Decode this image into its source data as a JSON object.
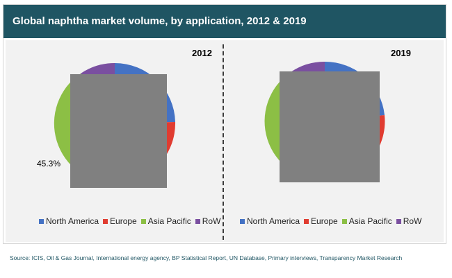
{
  "title": "Global naphtha market volume, by application, 2012 & 2019",
  "source": "Source: ICIS, Oil & Gas Journal, International energy agency, BP Statistical Report,  UN Database, Primary interviews, Transparency Market Research",
  "colors": {
    "title_bar": "#1f5563",
    "north_america": "#4472c4",
    "europe": "#e03c31",
    "asia_pacific": "#8cbf45",
    "row": "#7a4fa0",
    "overlay": "#808080"
  },
  "chart_data": [
    {
      "type": "pie",
      "title": "2012",
      "categories": [
        "North America",
        "Europe",
        "Asia Pacific",
        "RoW"
      ],
      "values": [
        null,
        null,
        45.3,
        null
      ],
      "data_labels": [
        "45.3%"
      ],
      "legend": "bottom",
      "note": "most of the pie is covered by a grey rectangle"
    },
    {
      "type": "pie",
      "title": "2019",
      "categories": [
        "North America",
        "Europe",
        "Asia Pacific",
        "RoW"
      ],
      "values": [
        null,
        null,
        null,
        null
      ],
      "legend": "bottom",
      "note": "most of the pie is covered by a grey rectangle"
    }
  ],
  "legend": {
    "items": [
      {
        "label": "North America",
        "color": "#4472c4"
      },
      {
        "label": "Europe",
        "color": "#e03c31"
      },
      {
        "label": "Asia Pacific",
        "color": "#8cbf45"
      },
      {
        "label": "RoW",
        "color": "#7a4fa0"
      }
    ]
  }
}
